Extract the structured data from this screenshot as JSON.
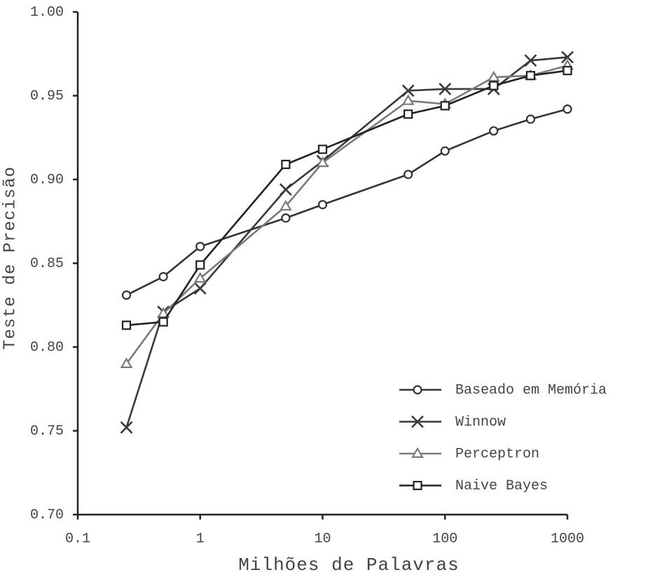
{
  "chart_data": {
    "type": "line",
    "xlabel": "Milhões de Palavras",
    "ylabel": "Teste de Precisão",
    "x": [
      0.25,
      0.5,
      1,
      5,
      10,
      50,
      100,
      250,
      500,
      1000
    ],
    "xscale": "log",
    "xlim": [
      0.1,
      1000
    ],
    "xticks": [
      0.1,
      1,
      10,
      100,
      1000
    ],
    "ylim": [
      0.7,
      1.0
    ],
    "yticks": [
      {
        "value": 0.7,
        "label": "0.70"
      },
      {
        "value": 0.75,
        "label": "0.75"
      },
      {
        "value": 0.8,
        "label": "0.80"
      },
      {
        "value": 0.85,
        "label": "0.85"
      },
      {
        "value": 0.9,
        "label": "0.90"
      },
      {
        "value": 0.95,
        "label": "0.95"
      },
      {
        "value": 1.0,
        "label": "1.00"
      }
    ],
    "grid": false,
    "legend": "lower right",
    "series": [
      {
        "name": "Baseado em Memória",
        "color": "#333333",
        "marker": "circle",
        "values": [
          0.831,
          0.842,
          0.86,
          0.877,
          0.885,
          0.903,
          0.917,
          0.929,
          0.936,
          0.942
        ]
      },
      {
        "name": "Winnow",
        "color": "#3a3a3a",
        "marker": "x",
        "values": [
          0.752,
          0.821,
          0.835,
          0.894,
          0.911,
          0.953,
          0.954,
          0.954,
          0.971,
          0.973
        ]
      },
      {
        "name": "Perceptron",
        "color": "#7a7a7a",
        "marker": "triangle",
        "values": [
          0.79,
          0.82,
          0.841,
          0.884,
          0.91,
          0.947,
          0.945,
          0.961,
          0.962,
          0.968
        ]
      },
      {
        "name": "Naive Bayes",
        "color": "#222222",
        "marker": "square",
        "values": [
          0.813,
          0.815,
          0.849,
          0.909,
          0.918,
          0.939,
          0.944,
          0.956,
          0.962,
          0.965
        ]
      }
    ]
  }
}
